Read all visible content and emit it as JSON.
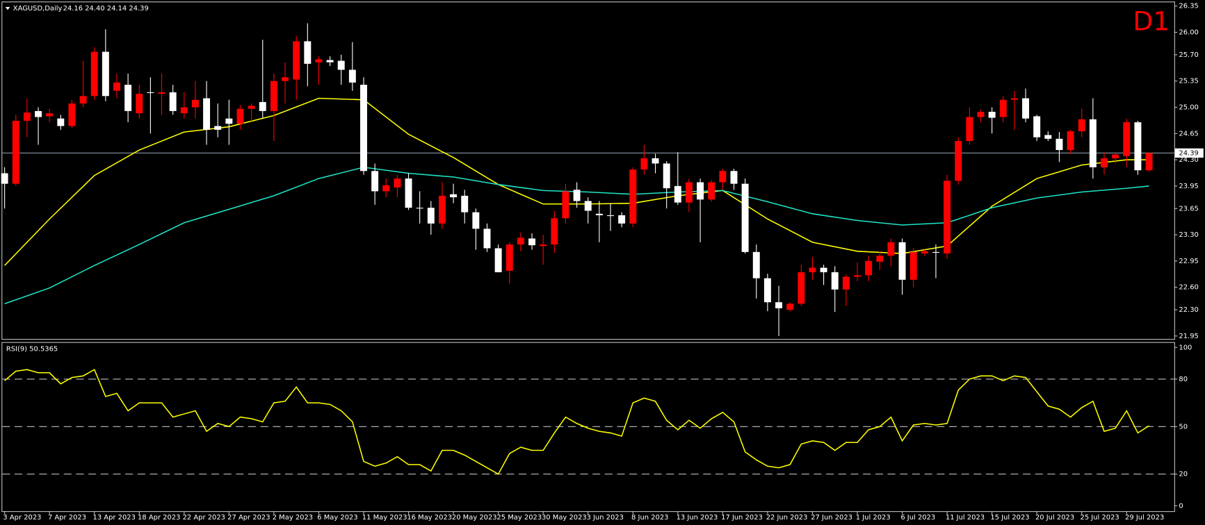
{
  "chart_data": [
    {
      "type": "candlestick",
      "title": "XAGUSD,Daily",
      "ohlc_text": "24.16 24.40 24.14 24.39",
      "timeframe_label": "D1",
      "categories": [
        "3 Apr 2023",
        null,
        null,
        null,
        "7 Apr 2023",
        null,
        null,
        null,
        "13 Apr 2023",
        null,
        null,
        null,
        "18 Apr 2023",
        null,
        null,
        null,
        "22 Apr 2023",
        null,
        null,
        null,
        "27 Apr 2023",
        null,
        null,
        null,
        "2 May 2023",
        null,
        null,
        null,
        "6 May 2023",
        null,
        null,
        null,
        "11 May 2023",
        null,
        null,
        null,
        "16 May 2023",
        null,
        null,
        null,
        "20 May 2023",
        null,
        null,
        null,
        "25 May 2023",
        null,
        null,
        null,
        "30 May 2023",
        null,
        null,
        null,
        "3 Jun 2023",
        null,
        null,
        null,
        "8 Jun 2023",
        null,
        null,
        null,
        "13 Jun 2023",
        null,
        null,
        null,
        "17 Jun 2023",
        null,
        null,
        null,
        "22 Jun 2023",
        null,
        null,
        null,
        "27 Jun 2023",
        null,
        null,
        null,
        "1 Jul 2023",
        null,
        null,
        null,
        "6 Jul 2023",
        null,
        null,
        null,
        "11 Jul 2023",
        null,
        null,
        null,
        "15 Jul 2023",
        null,
        null,
        null,
        "20 Jul 2023",
        null,
        null,
        null,
        "25 Jul 2023",
        null,
        null,
        null,
        "29 Jul 2023",
        null,
        null
      ],
      "open": [
        24.12,
        23.98,
        24.82,
        24.95,
        24.88,
        24.85,
        24.75,
        25.05,
        25.15,
        25.74,
        25.22,
        25.3,
        24.92,
        25.2,
        25.18,
        25.2,
        24.92,
        25.0,
        25.12,
        24.75,
        24.85,
        24.78,
        24.98,
        25.07,
        24.95,
        25.35,
        25.37,
        25.88,
        25.6,
        25.63,
        25.62,
        25.5,
        25.3,
        24.15,
        23.88,
        23.93,
        24.05,
        23.66,
        23.66,
        23.45,
        23.84,
        23.82,
        23.6,
        23.38,
        23.12,
        22.82,
        23.17,
        23.25,
        23.15,
        23.17,
        23.52,
        23.9,
        23.75,
        23.58,
        23.56,
        23.56,
        23.45,
        24.17,
        24.32,
        24.25,
        23.95,
        23.73,
        24.0,
        23.77,
        24.0,
        24.15,
        23.98,
        23.07,
        22.72,
        22.4,
        22.3,
        22.38,
        22.8,
        22.86,
        22.8,
        22.57,
        22.74,
        22.76,
        22.94,
        23.02,
        23.2,
        22.7,
        23.05,
        23.07,
        23.05,
        24.02,
        24.55,
        24.87,
        24.94,
        24.87,
        25.1,
        25.12,
        24.88,
        24.63,
        24.58,
        24.43,
        24.68,
        24.84,
        24.2,
        24.32,
        24.35,
        24.8,
        24.16
      ],
      "high": [
        24.2,
        24.9,
        25.12,
        25.0,
        24.98,
        24.9,
        25.1,
        25.62,
        25.8,
        26.04,
        25.45,
        25.45,
        25.3,
        25.4,
        25.45,
        25.3,
        25.2,
        25.35,
        25.35,
        25.05,
        25.1,
        25.03,
        25.05,
        25.9,
        25.45,
        25.6,
        25.95,
        26.12,
        25.68,
        25.68,
        25.7,
        25.87,
        25.4,
        24.25,
        24.05,
        24.1,
        24.12,
        23.88,
        23.75,
        24.0,
        23.98,
        23.9,
        23.65,
        23.45,
        23.17,
        23.2,
        23.33,
        23.32,
        23.3,
        23.62,
        23.98,
        24.0,
        23.8,
        23.75,
        23.72,
        23.6,
        24.2,
        24.5,
        24.38,
        24.28,
        24.4,
        24.05,
        24.05,
        24.03,
        24.18,
        24.18,
        24.05,
        23.17,
        22.78,
        22.62,
        22.4,
        22.9,
        23.0,
        22.9,
        22.88,
        22.77,
        22.93,
        23.02,
        23.08,
        23.25,
        23.25,
        23.12,
        23.1,
        23.17,
        24.1,
        24.6,
        25.0,
        24.97,
        25.0,
        25.15,
        25.22,
        25.25,
        24.9,
        24.68,
        24.67,
        24.7,
        24.98,
        25.12,
        24.4,
        24.38,
        24.85,
        24.82,
        24.4
      ],
      "low": [
        23.65,
        23.95,
        24.6,
        24.5,
        24.8,
        24.7,
        24.72,
        25.0,
        25.1,
        25.08,
        25.12,
        24.8,
        24.85,
        24.65,
        24.9,
        24.9,
        24.85,
        24.85,
        24.5,
        24.6,
        24.5,
        24.7,
        24.8,
        24.85,
        24.55,
        25.05,
        25.1,
        25.28,
        25.3,
        25.55,
        25.3,
        25.22,
        24.1,
        23.7,
        23.8,
        23.8,
        23.63,
        23.45,
        23.3,
        23.38,
        23.72,
        23.45,
        23.1,
        23.07,
        22.8,
        22.65,
        23.08,
        23.1,
        22.9,
        23.06,
        23.45,
        23.66,
        23.45,
        23.2,
        23.35,
        23.4,
        23.4,
        24.1,
        24.12,
        23.65,
        23.7,
        23.6,
        23.2,
        23.74,
        23.9,
        23.9,
        23.05,
        22.45,
        22.28,
        21.95,
        22.28,
        22.35,
        22.7,
        22.63,
        22.27,
        22.35,
        22.68,
        22.68,
        22.83,
        22.88,
        22.5,
        22.6,
        23.02,
        22.72,
        22.98,
        23.97,
        24.5,
        24.8,
        24.65,
        24.8,
        24.7,
        24.8,
        24.55,
        24.55,
        24.27,
        24.38,
        24.6,
        24.05,
        24.1,
        24.25,
        24.2,
        24.1,
        24.14
      ],
      "close": [
        23.98,
        24.82,
        24.93,
        24.87,
        24.92,
        24.75,
        25.05,
        25.15,
        25.74,
        25.15,
        25.33,
        24.95,
        25.18,
        25.19,
        25.2,
        24.95,
        25.0,
        25.1,
        24.7,
        24.7,
        24.78,
        24.98,
        25.02,
        24.95,
        25.35,
        25.4,
        25.88,
        25.58,
        25.64,
        25.6,
        25.5,
        25.33,
        24.15,
        23.88,
        23.96,
        24.05,
        23.66,
        23.65,
        23.45,
        23.82,
        23.8,
        23.6,
        23.38,
        23.12,
        22.8,
        23.17,
        23.26,
        23.16,
        23.17,
        23.52,
        23.88,
        23.75,
        23.62,
        23.56,
        23.55,
        23.45,
        24.17,
        24.32,
        24.25,
        23.92,
        23.73,
        24.0,
        23.77,
        24.0,
        24.15,
        23.98,
        23.07,
        22.72,
        22.4,
        22.32,
        22.38,
        22.8,
        22.86,
        22.8,
        22.57,
        22.74,
        22.76,
        22.95,
        23.02,
        23.2,
        22.7,
        23.07,
        23.08,
        23.07,
        24.02,
        24.55,
        24.87,
        24.94,
        24.86,
        25.1,
        25.12,
        24.85,
        24.6,
        24.58,
        24.43,
        24.68,
        24.84,
        24.2,
        24.32,
        24.37,
        24.8,
        24.16,
        24.39
      ],
      "up_color": "#ff0000",
      "down_color": "#ffffff",
      "ylim": [
        21.91,
        26.4
      ],
      "yticks": [
        26.35,
        {
          "value": 26,
          "label": "26.00"
        },
        {
          "value": 25.7,
          "label": "25.70"
        },
        25.35,
        {
          "value": 25,
          "label": "25.00"
        },
        24.65,
        {
          "value": 24.3,
          "label": "24.30"
        },
        23.95,
        23.65,
        {
          "value": 23.3,
          "label": "23.30"
        },
        22.95,
        {
          "value": 22.6,
          "label": "22.60"
        },
        {
          "value": 22.3,
          "label": "22.30"
        },
        21.95
      ],
      "current_price": 24.39,
      "lines": [
        {
          "color": "#ffff00",
          "x": [
            0,
            4,
            8,
            12,
            16,
            20,
            24,
            28,
            32,
            36,
            40,
            44,
            48,
            52,
            56,
            60,
            64,
            68,
            72,
            76,
            80,
            84,
            88,
            92,
            96,
            100,
            102
          ],
          "values": [
            22.89,
            23.51,
            24.09,
            24.43,
            24.67,
            24.74,
            24.89,
            25.12,
            25.1,
            24.64,
            24.33,
            23.97,
            23.71,
            23.71,
            23.72,
            23.82,
            23.89,
            23.51,
            23.2,
            23.08,
            23.05,
            23.15,
            23.68,
            24.05,
            24.23,
            24.3,
            24.3
          ]
        },
        {
          "color": "#1ee6c8",
          "x": [
            0,
            4,
            8,
            12,
            16,
            20,
            24,
            28,
            32,
            36,
            40,
            44,
            48,
            52,
            56,
            60,
            64,
            68,
            72,
            76,
            80,
            84,
            88,
            92,
            96,
            100,
            102
          ],
          "values": [
            22.38,
            22.59,
            22.89,
            23.17,
            23.46,
            23.64,
            23.82,
            24.05,
            24.2,
            24.12,
            24.07,
            23.97,
            23.89,
            23.87,
            23.84,
            23.87,
            23.89,
            23.74,
            23.58,
            23.49,
            23.43,
            23.46,
            23.66,
            23.79,
            23.87,
            23.92,
            23.95
          ]
        }
      ]
    },
    {
      "type": "line",
      "title": "RSI(9) 50.5365",
      "values": [
        79,
        85,
        86,
        84,
        84,
        77,
        81,
        82,
        86,
        69,
        71,
        60,
        65,
        65,
        65,
        56,
        58,
        60,
        47,
        52,
        50,
        56,
        55,
        53,
        65,
        66,
        75,
        65,
        65,
        64,
        60,
        53,
        28,
        25,
        27,
        31,
        26,
        26,
        22,
        35,
        35,
        32,
        28,
        24,
        20,
        33,
        37,
        35,
        35,
        46,
        56,
        52,
        49,
        47,
        46,
        44,
        65,
        68,
        66,
        54,
        48,
        54,
        49,
        55,
        59,
        53,
        34,
        29,
        25,
        24,
        26,
        39,
        41,
        40,
        35,
        40,
        40,
        48,
        50,
        56,
        41,
        51,
        52,
        51,
        52,
        73,
        80,
        82,
        82,
        79,
        82,
        81,
        72,
        63,
        61,
        56,
        62,
        66,
        47,
        49,
        60,
        46,
        50.5
      ],
      "color": "#ffff00",
      "ylim": [
        -3.4,
        102.9
      ],
      "yticks": [
        0,
        20,
        50,
        80,
        100
      ],
      "levels": [
        20,
        50,
        80
      ]
    }
  ]
}
